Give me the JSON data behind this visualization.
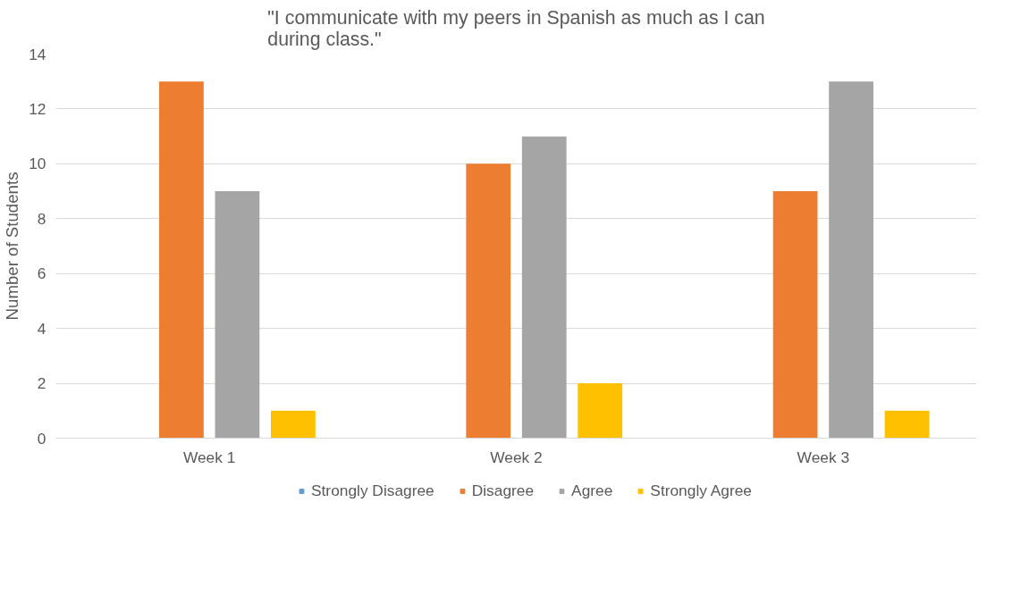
{
  "chart_data": {
    "type": "bar",
    "title": "\"I communicate with my peers in Spanish as much as I can during class.\"",
    "ylabel": "Number of Students",
    "categories": [
      "Week 1",
      "Week 2",
      "Week 3"
    ],
    "series": [
      {
        "name": "Strongly Disagree",
        "color": "#5b9bd5",
        "values": [
          0,
          0,
          0
        ]
      },
      {
        "name": "Disagree",
        "color": "#ed7d31",
        "values": [
          13,
          10,
          9
        ]
      },
      {
        "name": "Agree",
        "color": "#a5a5a5",
        "values": [
          9,
          11,
          13
        ]
      },
      {
        "name": "Strongly Agree",
        "color": "#ffc000",
        "values": [
          1,
          2,
          1
        ]
      }
    ],
    "ylim": [
      0,
      14
    ],
    "yticks": [
      0,
      2,
      4,
      6,
      8,
      10,
      12,
      14
    ],
    "grid": "y",
    "legend": "bottom"
  }
}
